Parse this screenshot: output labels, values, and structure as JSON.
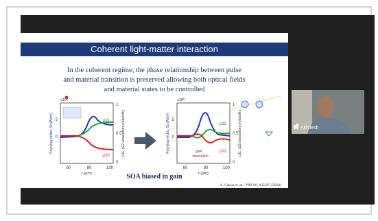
{
  "slide": {
    "title": "Coherent light-matter interaction",
    "body": [
      "In the coherent regime, the phase relationship between pulse",
      "and material transition is preserved allowing both optical fields",
      "and material states to be controlled"
    ],
    "plots": [
      {
        "scale": "x10⁸",
        "y_label": "Poynting vector, Sz (W/m²)",
        "y2_label": "ρ11, ρ22 absorption probability",
        "x_label": "z (μm)",
        "x_ticks": [
          "60",
          "80",
          "100"
        ],
        "y_ticks": [
          "5",
          "0"
        ],
        "y2_ticks": [
          "1",
          "0.5",
          "0"
        ],
        "curve_labels": [
          "ρ11",
          "ρ22"
        ]
      },
      {
        "scale": "x10¹¹",
        "y_label": "Poynting vector, Sz (W/m²)",
        "y2_label": "ρ11, ρ22 absorption probability",
        "x_label": "z (μm)",
        "x_ticks": [
          "60",
          "80",
          "100"
        ],
        "y_ticks": [
          "5",
          "0"
        ],
        "y2_ticks": [
          "1",
          "0.5",
          "0"
        ],
        "curve_labels": [
          "ρ11",
          "ρ22"
        ],
        "notes": [
          "gain",
          "absorption"
        ]
      }
    ],
    "caption": "SOA biased in gain",
    "citation": "A. Capua et. al., PRB 90, 045305 (2014)"
  },
  "participant": {
    "name": "Akhilesh"
  }
}
